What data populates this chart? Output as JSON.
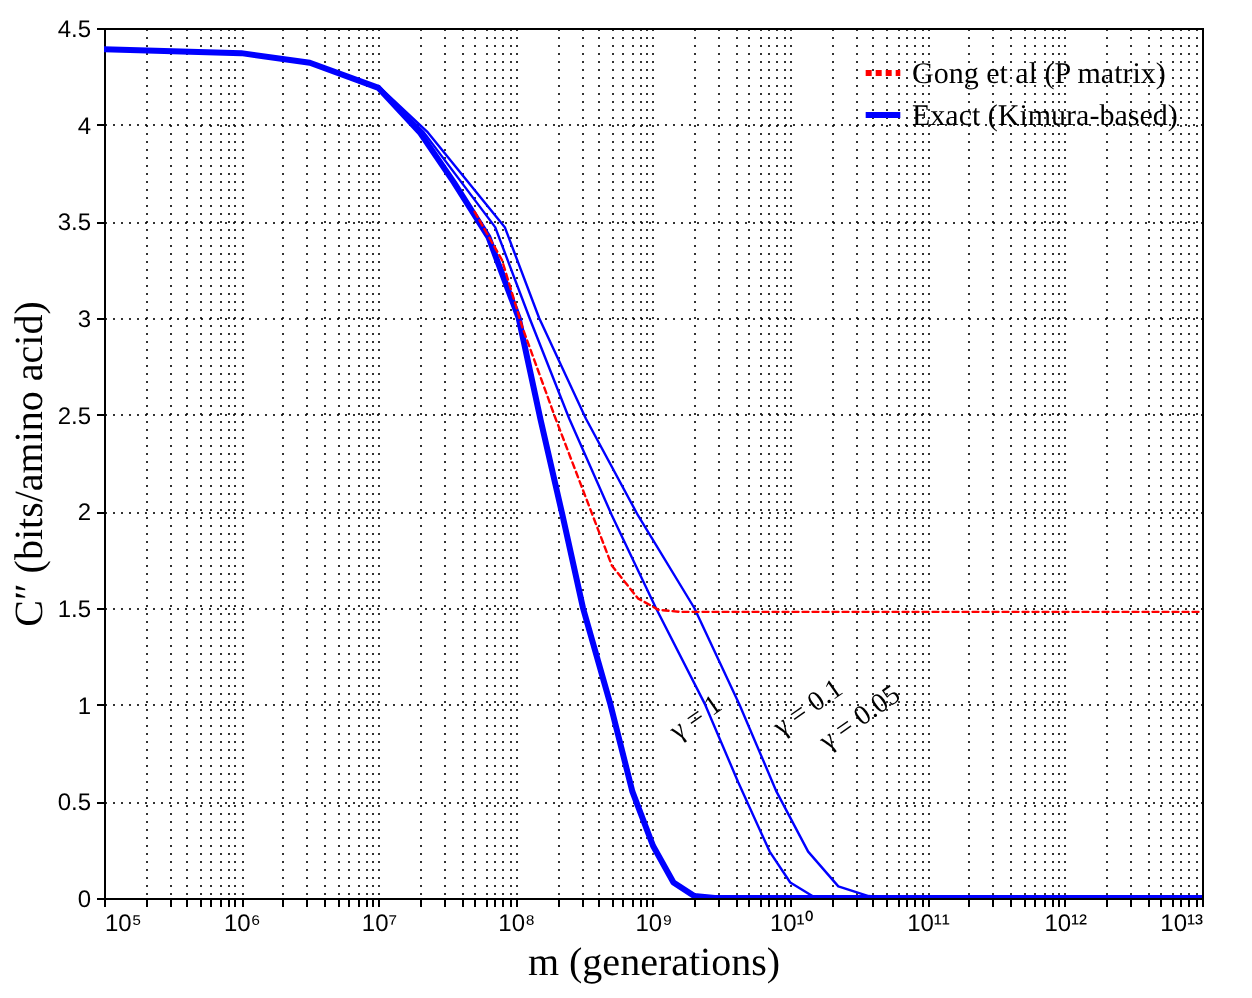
{
  "chart_data": {
    "type": "line",
    "xlabel": "m (generations)",
    "ylabel": "C″ (bits/amino acid)",
    "log": "x",
    "grid": true,
    "legend": "top right",
    "xlim": [
      100000.0,
      10000000000000.0
    ],
    "ylim": [
      0,
      4.5
    ],
    "xticks": [
      {
        "value": 100000.0,
        "label": "10⁵"
      },
      {
        "value": 200000.0,
        "label": null
      },
      {
        "value": 300000.0,
        "label": null
      },
      {
        "value": 400000.0,
        "label": null
      },
      {
        "value": 500000.0,
        "label": null
      },
      {
        "value": 600000.0,
        "label": null
      },
      {
        "value": 700000.0,
        "label": null
      },
      {
        "value": 800000.0,
        "label": null
      },
      {
        "value": 900000.0,
        "label": null
      },
      {
        "value": 1000000.0,
        "label": "10⁶"
      },
      {
        "value": 2000000.0,
        "label": null
      },
      {
        "value": 3000000.0,
        "label": null
      },
      {
        "value": 4000000.0,
        "label": null
      },
      {
        "value": 5000000.0,
        "label": null
      },
      {
        "value": 6000000.0,
        "label": null
      },
      {
        "value": 7000000.0,
        "label": null
      },
      {
        "value": 8000000.0,
        "label": null
      },
      {
        "value": 9000000.0,
        "label": null
      },
      {
        "value": 10000000.0,
        "label": "10⁷"
      },
      {
        "value": 20000000.0,
        "label": null
      },
      {
        "value": 30000000.0,
        "label": null
      },
      {
        "value": 40000000.0,
        "label": null
      },
      {
        "value": 50000000.0,
        "label": null
      },
      {
        "value": 60000000.0,
        "label": null
      },
      {
        "value": 70000000.0,
        "label": null
      },
      {
        "value": 80000000.0,
        "label": null
      },
      {
        "value": 90000000.0,
        "label": null
      },
      {
        "value": 100000000.0,
        "label": "10⁸"
      },
      {
        "value": 200000000.0,
        "label": null
      },
      {
        "value": 300000000.0,
        "label": null
      },
      {
        "value": 400000000.0,
        "label": null
      },
      {
        "value": 500000000.0,
        "label": null
      },
      {
        "value": 600000000.0,
        "label": null
      },
      {
        "value": 700000000.0,
        "label": null
      },
      {
        "value": 800000000.0,
        "label": null
      },
      {
        "value": 900000000.0,
        "label": null
      },
      {
        "value": 1000000000.0,
        "label": "10⁹"
      },
      {
        "value": 2000000000.0,
        "label": null
      },
      {
        "value": 3000000000.0,
        "label": null
      },
      {
        "value": 4000000000.0,
        "label": null
      },
      {
        "value": 5000000000.0,
        "label": null
      },
      {
        "value": 6000000000.0,
        "label": null
      },
      {
        "value": 7000000000.0,
        "label": null
      },
      {
        "value": 8000000000.0,
        "label": null
      },
      {
        "value": 9000000000.0,
        "label": null
      },
      {
        "value": 10000000000.0,
        "label": "10¹⁰"
      },
      {
        "value": 20000000000.0,
        "label": null
      },
      {
        "value": 30000000000.0,
        "label": null
      },
      {
        "value": 40000000000.0,
        "label": null
      },
      {
        "value": 50000000000.0,
        "label": null
      },
      {
        "value": 60000000000.0,
        "label": null
      },
      {
        "value": 70000000000.0,
        "label": null
      },
      {
        "value": 80000000000.0,
        "label": null
      },
      {
        "value": 90000000000.0,
        "label": null
      },
      {
        "value": 100000000000.0,
        "label": "10¹¹"
      },
      {
        "value": 200000000000.0,
        "label": null
      },
      {
        "value": 300000000000.0,
        "label": null
      },
      {
        "value": 400000000000.0,
        "label": null
      },
      {
        "value": 500000000000.0,
        "label": null
      },
      {
        "value": 600000000000.0,
        "label": null
      },
      {
        "value": 700000000000.0,
        "label": null
      },
      {
        "value": 800000000000.0,
        "label": null
      },
      {
        "value": 900000000000.0,
        "label": null
      },
      {
        "value": 1000000000000.0,
        "label": "10¹²"
      },
      {
        "value": 2000000000000.0,
        "label": null
      },
      {
        "value": 3000000000000.0,
        "label": null
      },
      {
        "value": 4000000000000.0,
        "label": null
      },
      {
        "value": 5000000000000.0,
        "label": null
      },
      {
        "value": 6000000000000.0,
        "label": null
      },
      {
        "value": 7000000000000.0,
        "label": null
      },
      {
        "value": 8000000000000.0,
        "label": null
      },
      {
        "value": 9000000000000.0,
        "label": null
      },
      {
        "value": 10000000000000.0,
        "label": "10¹³"
      }
    ],
    "yticks": [
      0,
      0.5,
      1,
      1.5,
      2,
      2.5,
      3,
      3.5,
      4,
      4.5
    ],
    "series": [
      {
        "name": "Gong et al (P matrix)",
        "color": "#ff0000",
        "line_style": "dashed",
        "x": [
          50100000.0,
          79400000.0,
          112000000.0,
          195000000.0,
          363000000.0,
          501000000.0,
          776000000.0,
          1100000000.0,
          1580000000.0,
          10000000000000.0
        ],
        "values": [
          3.55,
          3.3,
          2.95,
          2.48,
          1.98,
          1.72,
          1.55,
          1.49,
          1.48,
          1.48
        ]
      },
      {
        "name": "Exact (Kimura-based)",
        "color": "#0000ff",
        "line_style": "solid",
        "x": [
          100000.0,
          1000000.0,
          3160000.0,
          10000000.0,
          20000000.0,
          35500000.0,
          63100000.0,
          105000000.0,
          151000000.0,
          219000000.0,
          309000000.0,
          490000000.0,
          708000000.0,
          1000000000.0,
          1410000000.0,
          2000000000.0,
          2820000000.0,
          10000000000000.0
        ],
        "values": [
          4.39,
          4.37,
          4.32,
          4.19,
          3.96,
          3.7,
          3.42,
          3.0,
          2.48,
          1.98,
          1.5,
          1.0,
          0.55,
          0.27,
          0.08,
          0.01,
          0,
          0
        ]
      },
      {
        "color": "#0000ff",
        "line_style": "solid",
        "x": [
          10000000.0,
          21400000.0,
          70800000.0,
          126000000.0,
          245000000.0,
          501000000.0,
          1050000000.0,
          2400000000.0,
          4170000000.0,
          7080000000.0,
          10000000000.0,
          14500000000.0,
          20000000000.0
        ],
        "values": [
          4.2,
          3.96,
          3.47,
          3.0,
          2.48,
          1.98,
          1.5,
          1.0,
          0.6,
          0.24,
          0.08,
          0.01,
          0
        ]
      },
      {
        "color": "#0000ff",
        "line_style": "solid",
        "x": [
          10000000.0,
          22900000.0,
          83200000.0,
          148000000.0,
          324000000.0,
          776000000.0,
          2000000000.0,
          4270000000.0,
          7940000000.0,
          13500000000.0,
          22400000000.0,
          37200000000.0,
          50100000000.0
        ],
        "values": [
          4.2,
          3.96,
          3.47,
          3.0,
          2.48,
          1.98,
          1.5,
          1.0,
          0.55,
          0.24,
          0.06,
          0.01,
          0
        ]
      }
    ],
    "annotations": [
      "γ = 1",
      "γ = 0.1",
      "γ = 0.05"
    ]
  }
}
